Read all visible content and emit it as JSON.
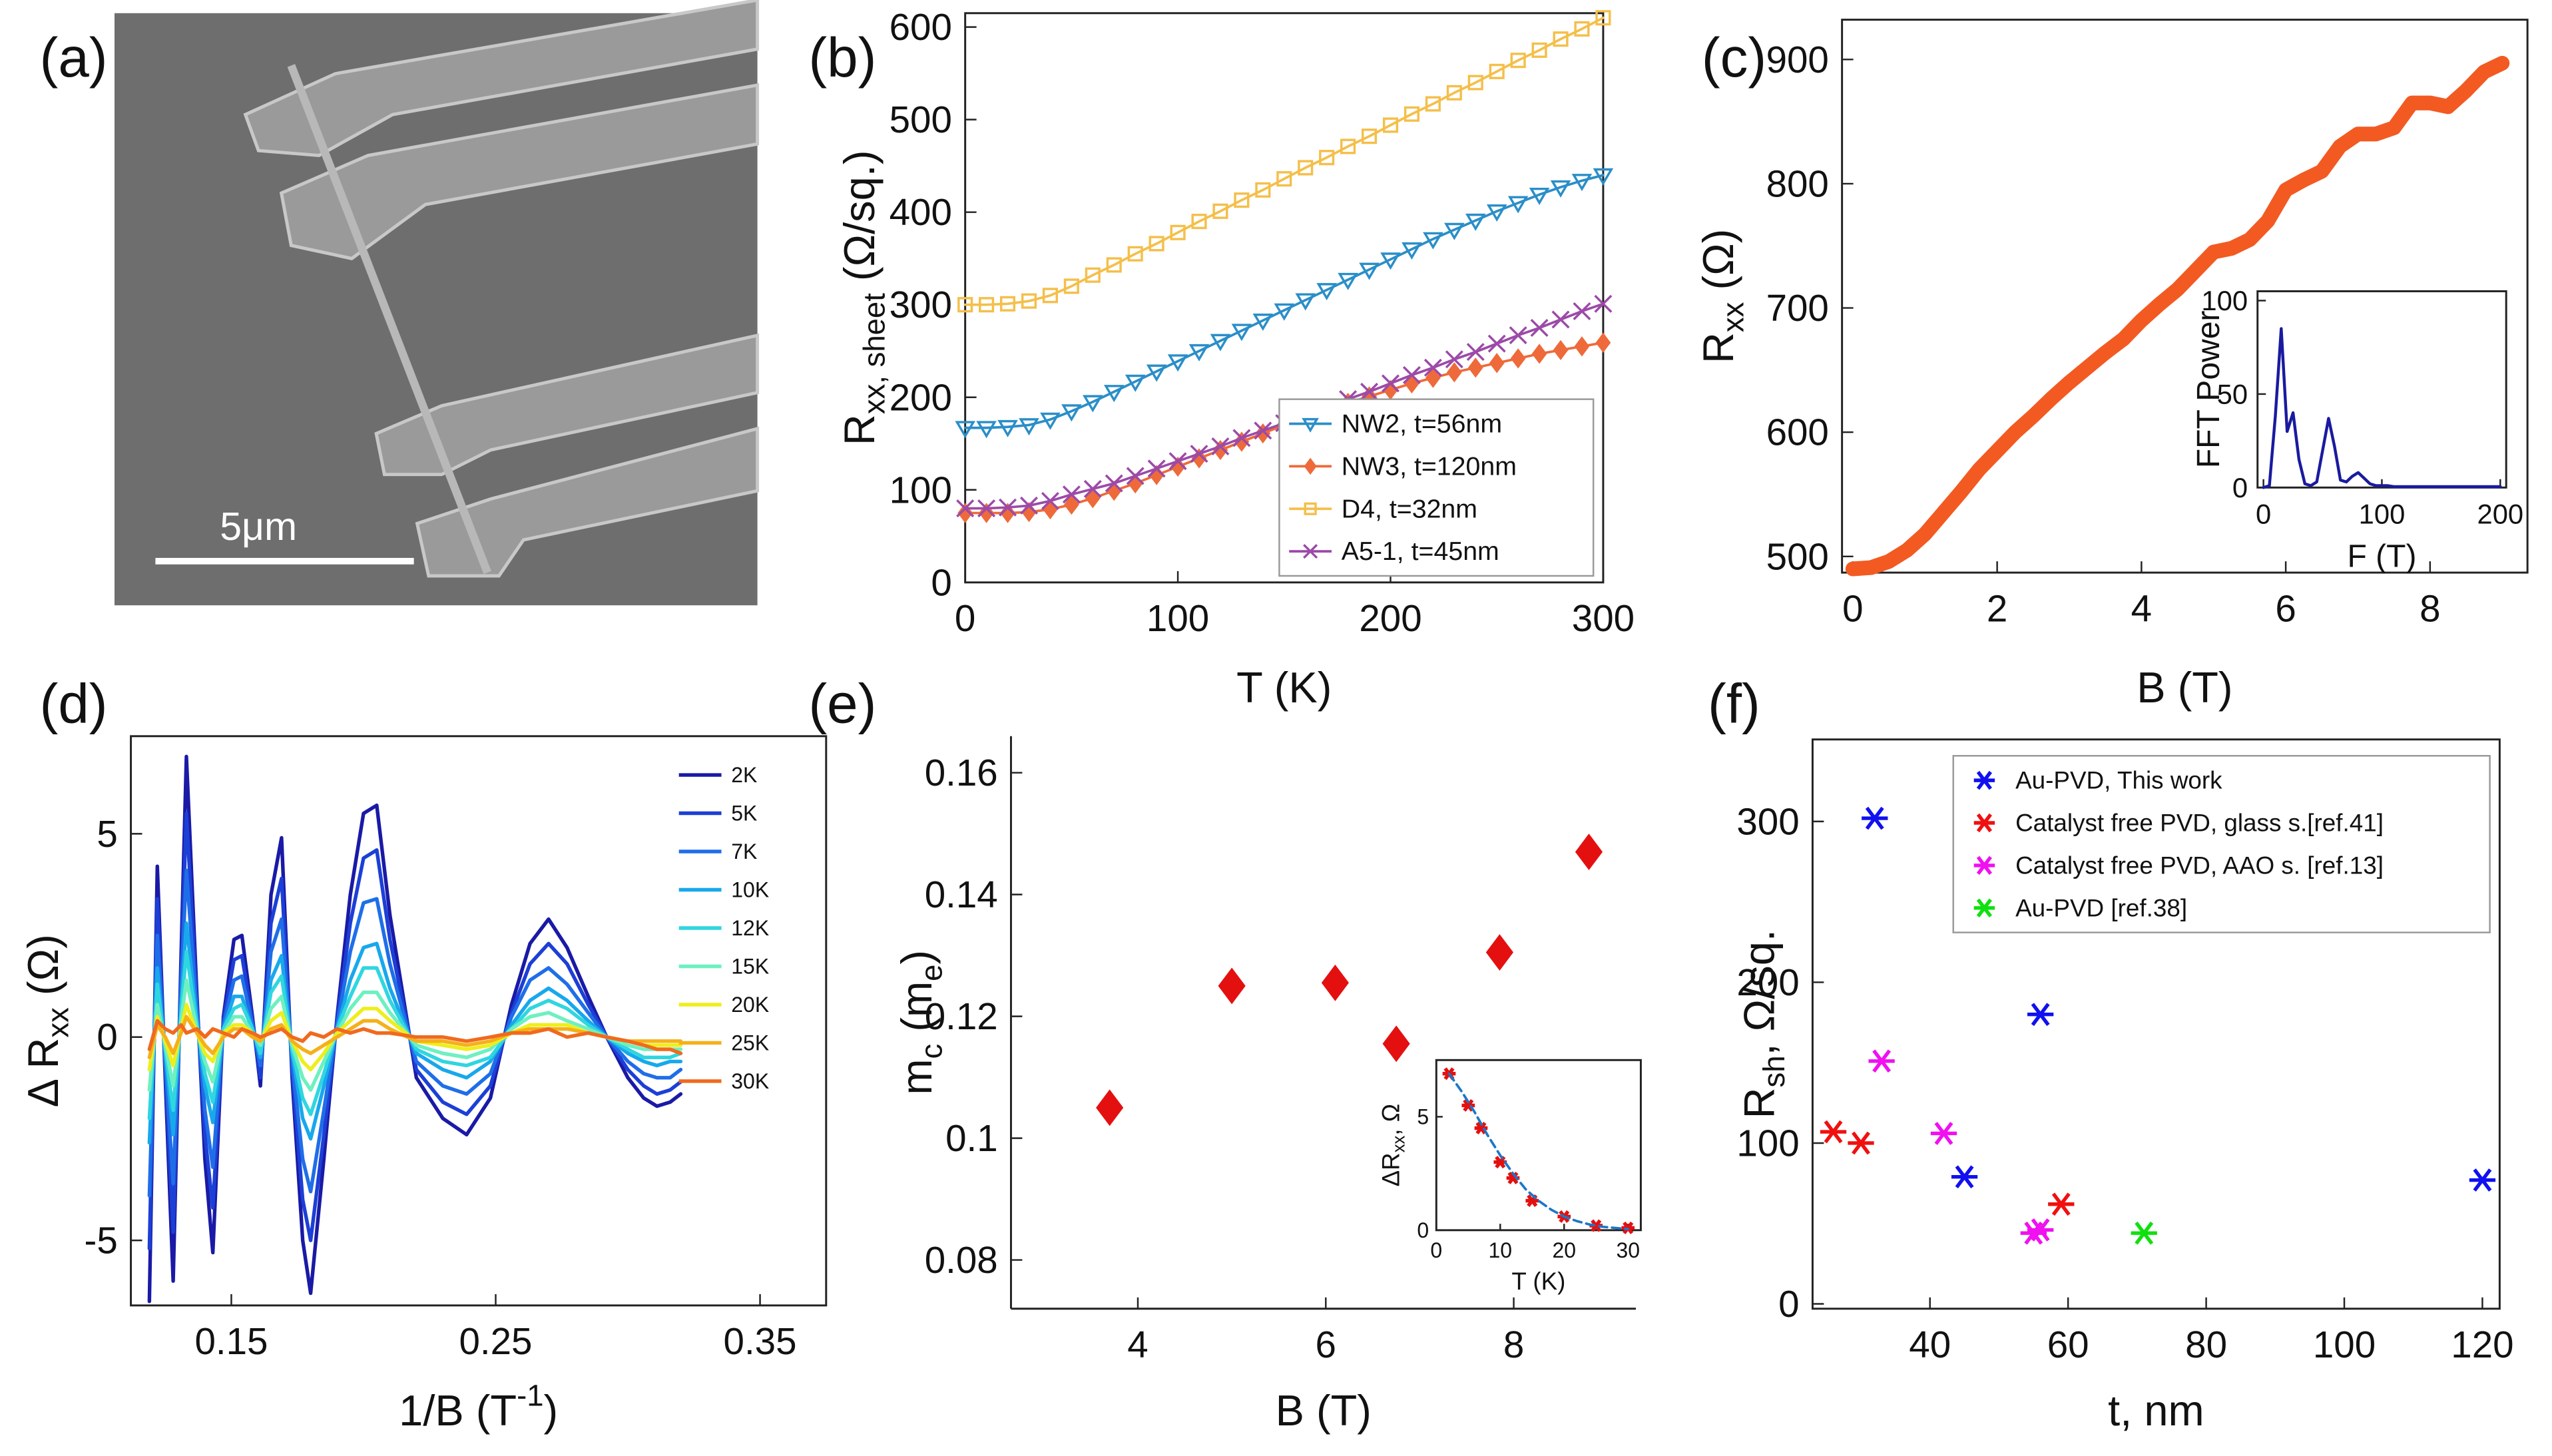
{
  "chart_data": [
    {
      "type": "image",
      "label": "(a)",
      "scale_bar": "5μm"
    },
    {
      "type": "line",
      "label": "(b)",
      "box": true,
      "xlabel": [
        "T (K)"
      ],
      "ylabel": [
        "R",
        "xx, sheet",
        " (Ω/sq.)"
      ],
      "xlim": [
        0,
        300
      ],
      "ylim": [
        0,
        615
      ],
      "xticks": [
        0,
        100,
        200,
        300
      ],
      "yticks": [
        0,
        100,
        200,
        300,
        400,
        500,
        600
      ],
      "legend": {
        "corner": "lower right",
        "frame": true
      },
      "x": [
        0,
        10,
        20,
        30,
        40,
        50,
        60,
        70,
        80,
        90,
        100,
        110,
        120,
        130,
        140,
        150,
        160,
        170,
        180,
        190,
        200,
        210,
        220,
        230,
        240,
        250,
        260,
        270,
        280,
        290,
        300
      ],
      "series": [
        {
          "name": "NW2, t=56nm",
          "color": "#2a8ec8",
          "marker": "triangle-down",
          "values": [
            167,
            167,
            168,
            170,
            176,
            185,
            195,
            206,
            217,
            228,
            239,
            250,
            261,
            272,
            283,
            294,
            305,
            316,
            327,
            338,
            349,
            360,
            371,
            381,
            391,
            401,
            410,
            419,
            427,
            434,
            440
          ]
        },
        {
          "name": "NW3, t=120nm",
          "color": "#ee6a3a",
          "marker": "diamond",
          "values": [
            75,
            75,
            75,
            76,
            79,
            84,
            91,
            99,
            107,
            116,
            125,
            134,
            143,
            152,
            161,
            170,
            178,
            186,
            194,
            201,
            208,
            215,
            221,
            227,
            232,
            237,
            242,
            247,
            251,
            255,
            259
          ]
        },
        {
          "name": "D4, t=32nm",
          "color": "#f4bf4a",
          "marker": "square",
          "values": [
            300,
            300,
            301,
            304,
            310,
            320,
            332,
            343,
            355,
            366,
            378,
            390,
            401,
            413,
            424,
            436,
            448,
            459,
            471,
            482,
            494,
            506,
            517,
            529,
            540,
            552,
            564,
            575,
            587,
            598,
            610
          ]
        },
        {
          "name": "A5-1, t=45nm",
          "color": "#9c4aa8",
          "marker": "x",
          "values": [
            80,
            80,
            81,
            83,
            88,
            95,
            101,
            107,
            115,
            123,
            131,
            139,
            147,
            156,
            164,
            172,
            181,
            189,
            198,
            206,
            215,
            224,
            232,
            241,
            249,
            258,
            267,
            275,
            284,
            293,
            301
          ]
        }
      ]
    },
    {
      "type": "line",
      "label": "(c)",
      "box": true,
      "xlabel": [
        "B (T)"
      ],
      "ylabel": [
        "R",
        "xx",
        " (Ω)"
      ],
      "xlim": [
        -0.15,
        9.35
      ],
      "ylim": [
        487,
        932
      ],
      "xticks": [
        0,
        2,
        4,
        6,
        8
      ],
      "yticks": [
        500,
        600,
        700,
        800,
        900
      ],
      "x": [
        0,
        0.25,
        0.5,
        0.75,
        1,
        1.25,
        1.5,
        1.75,
        2,
        2.25,
        2.5,
        2.75,
        3,
        3.25,
        3.5,
        3.75,
        4,
        4.25,
        4.5,
        4.75,
        5,
        5.25,
        5.5,
        5.75,
        6,
        6.25,
        6.5,
        6.75,
        7,
        7.25,
        7.5,
        7.75,
        8,
        8.25,
        8.5,
        8.75,
        9
      ],
      "color": "#f25a22",
      "values": [
        490,
        491,
        496,
        505,
        518,
        535,
        552,
        570,
        585,
        600,
        613,
        627,
        640,
        652,
        664,
        675,
        690,
        703,
        715,
        730,
        745,
        748,
        755,
        770,
        795,
        803,
        810,
        830,
        840,
        840,
        845,
        865,
        865,
        862,
        875,
        890,
        897
      ],
      "inset": {
        "type": "line",
        "box": true,
        "xlabel": [
          "F (T)"
        ],
        "ylabel": [
          "FFT Power"
        ],
        "xlim": [
          -5,
          205
        ],
        "ylim": [
          0,
          105
        ],
        "xticks": [
          0,
          100,
          200
        ],
        "yticks": [
          0,
          50,
          100
        ],
        "color": "#1a1aa0",
        "x": [
          0,
          5,
          10,
          15,
          20,
          25,
          30,
          35,
          40,
          45,
          50,
          55,
          60,
          65,
          70,
          75,
          80,
          85,
          90,
          95,
          100,
          105,
          110,
          115,
          120,
          125,
          130,
          135,
          140,
          145,
          150,
          155,
          160,
          165,
          170,
          175,
          180,
          185,
          190,
          195,
          200
        ],
        "values": [
          0,
          1,
          38,
          85,
          30,
          40,
          15,
          2,
          1,
          3,
          20,
          37,
          22,
          4,
          3,
          6,
          8,
          5,
          2,
          1,
          1,
          1,
          0.5,
          0.5,
          0.5,
          0.5,
          0.5,
          0.5,
          0.5,
          0.5,
          0.5,
          0.5,
          0.5,
          0.5,
          0.5,
          0.5,
          0.5,
          0.5,
          0.5,
          0.5,
          0.5
        ]
      }
    },
    {
      "type": "line",
      "label": "(d)",
      "box": true,
      "xlabel": [
        "1/B (T",
        "-1",
        ")"
      ],
      "xlabel_script": "super",
      "ylabel": [
        "Δ R",
        "xx",
        " (Ω)"
      ],
      "xlim": [
        0.112,
        0.375
      ],
      "ylim": [
        -6.6,
        7.4
      ],
      "xticks": [
        0.15,
        0.25,
        0.35
      ],
      "yticks": [
        -5,
        0,
        5
      ],
      "legend": {
        "corner": "upper right",
        "frame": false
      },
      "x": [
        0.119,
        0.122,
        0.125,
        0.128,
        0.131,
        0.133,
        0.137,
        0.14,
        0.143,
        0.147,
        0.151,
        0.154,
        0.158,
        0.161,
        0.165,
        0.169,
        0.173,
        0.177,
        0.18,
        0.185,
        0.19,
        0.195,
        0.2,
        0.205,
        0.21,
        0.22,
        0.23,
        0.239,
        0.248,
        0.256,
        0.263,
        0.27,
        0.277,
        0.285,
        0.292,
        0.3,
        0.306,
        0.311,
        0.316,
        0.32
      ],
      "series": [
        {
          "name": "2K",
          "color": "#1a1aa6",
          "values": [
            -6.5,
            4.2,
            -1,
            -6,
            2,
            6.9,
            1,
            -3,
            -5.3,
            0.5,
            2.4,
            2.5,
            0.5,
            -1.2,
            3.5,
            4.9,
            -1,
            -5,
            -6.3,
            -3,
            0.5,
            3.5,
            5.5,
            5.7,
            3,
            -1,
            -2,
            -2.4,
            -1.5,
            0.8,
            2.3,
            2.9,
            2.2,
            1,
            0,
            -1,
            -1.5,
            -1.7,
            -1.6,
            -1.4
          ]
        },
        {
          "name": "5K",
          "color": "#1c3fd6",
          "values": [
            -5.2,
            3.4,
            -0.8,
            -4.8,
            1.6,
            5.5,
            0.8,
            -2.4,
            -4.2,
            0.4,
            1.9,
            2,
            0.4,
            -1,
            2.8,
            3.9,
            -0.8,
            -4,
            -5,
            -2.4,
            0.4,
            2.8,
            4.4,
            4.6,
            2.4,
            -0.8,
            -1.6,
            -1.9,
            -1.2,
            0.6,
            1.8,
            2.3,
            1.8,
            0.8,
            0,
            -0.8,
            -1.2,
            -1.4,
            -1.3,
            -1.1
          ]
        },
        {
          "name": "7K",
          "color": "#1f6ee8",
          "values": [
            -3.9,
            2.5,
            -0.6,
            -3.6,
            1.2,
            4.1,
            0.6,
            -1.8,
            -3.2,
            0.3,
            1.4,
            1.5,
            0.3,
            -0.7,
            2.1,
            2.9,
            -0.6,
            -3,
            -3.8,
            -1.8,
            0.3,
            2.1,
            3.3,
            3.4,
            1.8,
            -0.6,
            -1.2,
            -1.4,
            -0.9,
            0.5,
            1.4,
            1.7,
            1.3,
            0.6,
            0,
            -0.6,
            -0.9,
            -1,
            -1,
            -0.8
          ]
        },
        {
          "name": "10K",
          "color": "#18a8ec",
          "values": [
            -2.6,
            1.7,
            -0.4,
            -2.4,
            0.8,
            2.8,
            0.4,
            -1.2,
            -2.1,
            0.2,
            1,
            1,
            0.2,
            -0.5,
            1.4,
            2,
            -0.4,
            -2,
            -2.5,
            -1.2,
            0.2,
            1.4,
            2.2,
            2.3,
            1.2,
            -0.4,
            -0.8,
            -1,
            -0.6,
            0.3,
            0.9,
            1.2,
            0.9,
            0.4,
            0,
            -0.4,
            -0.6,
            -0.7,
            -0.6,
            -0.6
          ]
        },
        {
          "name": "12K",
          "color": "#2fd6e0",
          "values": [
            -2,
            1.3,
            -0.3,
            -1.8,
            0.6,
            2.1,
            0.3,
            -0.9,
            -1.6,
            0.2,
            0.7,
            0.8,
            0.2,
            -0.4,
            1.1,
            1.5,
            -0.3,
            -1.5,
            -1.9,
            -0.9,
            0.2,
            1,
            1.7,
            1.7,
            0.9,
            -0.3,
            -0.6,
            -0.7,
            -0.5,
            0.2,
            0.7,
            0.9,
            0.7,
            0.3,
            0,
            -0.3,
            -0.5,
            -0.5,
            -0.5,
            -0.4
          ]
        },
        {
          "name": "15K",
          "color": "#6ef0c0",
          "values": [
            -1.3,
            0.8,
            -0.2,
            -1.2,
            0.4,
            1.4,
            0.2,
            -0.6,
            -1.1,
            0.1,
            0.5,
            0.5,
            0.1,
            -0.2,
            0.7,
            1,
            -0.2,
            -1,
            -1.3,
            -0.6,
            0.1,
            0.7,
            1.1,
            1.1,
            0.6,
            -0.2,
            -0.4,
            -0.5,
            -0.3,
            0.2,
            0.5,
            0.6,
            0.4,
            0.2,
            0,
            -0.2,
            -0.3,
            -0.3,
            -0.3,
            -0.3
          ]
        },
        {
          "name": "20K",
          "color": "#eeee1c",
          "values": [
            -0.8,
            0.5,
            -0.1,
            -0.7,
            0.2,
            0.8,
            0.1,
            -0.4,
            -0.6,
            0.1,
            0.3,
            0.3,
            0.1,
            -0.1,
            0.4,
            0.6,
            -0.1,
            -0.6,
            -0.8,
            -0.4,
            0.1,
            0.4,
            0.7,
            0.7,
            0.4,
            -0.1,
            -0.2,
            -0.3,
            -0.2,
            0.1,
            0.3,
            0.3,
            0.3,
            0.1,
            0,
            -0.1,
            -0.2,
            -0.2,
            -0.2,
            -0.2
          ]
        },
        {
          "name": "25K",
          "color": "#f5b01a",
          "values": [
            -0.5,
            0.3,
            0,
            -0.4,
            0.1,
            0.5,
            0.1,
            -0.2,
            -0.4,
            0,
            0.2,
            0.2,
            0,
            -0.1,
            0.2,
            0.3,
            -0.1,
            -0.3,
            -0.4,
            -0.2,
            0,
            0.2,
            0.4,
            0.4,
            0.2,
            -0.1,
            -0.1,
            -0.2,
            -0.1,
            0.1,
            0.2,
            0.2,
            0.2,
            0.1,
            0,
            -0.1,
            -0.1,
            -0.1,
            -0.1,
            -0.1
          ]
        },
        {
          "name": "30K",
          "color": "#f06a1e",
          "values": [
            -0.3,
            0.4,
            0.2,
            0.1,
            0.3,
            0.1,
            0.2,
            0,
            0.2,
            0.1,
            0,
            0.2,
            0.1,
            0,
            0.1,
            0.2,
            0,
            -0.1,
            0.1,
            0,
            0.2,
            0.1,
            0.2,
            0.1,
            0.1,
            0,
            0,
            -0.1,
            0,
            0.1,
            0.1,
            0.2,
            0,
            0.1,
            0,
            -0.1,
            -0.2,
            -0.3,
            -0.3,
            -0.4
          ]
        }
      ]
    },
    {
      "type": "scatter",
      "label": "(e)",
      "box": false,
      "xlabel": [
        "B (T)"
      ],
      "ylabel": [
        "m",
        "c",
        " (m",
        "e",
        ")"
      ],
      "xlim": [
        2.65,
        9.3
      ],
      "ylim": [
        0.072,
        0.166
      ],
      "xticks": [
        4,
        6,
        8
      ],
      "yticks": [
        0.08,
        0.1,
        0.12,
        0.14,
        0.16
      ],
      "x": [
        3.7,
        5,
        6.1,
        6.75,
        7.85,
        8.8
      ],
      "values": [
        0.105,
        0.125,
        0.1255,
        0.1155,
        0.1305,
        0.147
      ],
      "color": "#e41010",
      "marker": "diamond",
      "inset": {
        "type": "line",
        "box": true,
        "xlabel": [
          "T (K)"
        ],
        "ylabel": [
          "ΔR",
          "xx",
          ", Ω"
        ],
        "xlim": [
          0,
          32
        ],
        "ylim": [
          0,
          7.5
        ],
        "xticks": [
          0,
          10,
          20,
          30
        ],
        "yticks": [
          0,
          5
        ],
        "series": [
          {
            "color": "#e41010",
            "marker": "asterisk",
            "line": false,
            "x": [
              2,
              5,
              7,
              10,
              12,
              15,
              20,
              25,
              30
            ],
            "values": [
              6.9,
              5.5,
              4.5,
              3,
              2.3,
              1.3,
              0.6,
              0.2,
              0.1
            ]
          },
          {
            "color": "#1a78c8",
            "dash": true,
            "x": [
              2,
              4,
              6,
              8,
              10,
              12,
              14,
              16,
              18,
              20,
              22,
              24,
              26,
              28,
              30
            ],
            "values": [
              6.9,
              6.1,
              5.2,
              4.2,
              3.3,
              2.5,
              1.8,
              1.3,
              0.9,
              0.6,
              0.4,
              0.25,
              0.15,
              0.1,
              0.05
            ]
          }
        ]
      }
    },
    {
      "type": "scatter",
      "label": "(f)",
      "box": true,
      "xlabel": [
        "t, nm"
      ],
      "ylabel": [
        "R",
        "sh",
        ", Ω/sq."
      ],
      "xlim": [
        23,
        122.5
      ],
      "ylim": [
        -3,
        351
      ],
      "xticks": [
        40,
        60,
        80,
        100,
        120
      ],
      "yticks": [
        0,
        100,
        200,
        300
      ],
      "legend": {
        "corner": "upper right",
        "frame": true
      },
      "series": [
        {
          "name": "Au-PVD, This work",
          "color": "#1010f0",
          "marker": "asterisk",
          "x": [
            32,
            56,
            45,
            120
          ],
          "values": [
            302,
            180,
            79,
            77
          ]
        },
        {
          "name": "Catalyst free PVD, glass s.[ref.41]",
          "color": "#f01010",
          "marker": "asterisk",
          "x": [
            26,
            30,
            59
          ],
          "values": [
            107,
            100,
            62
          ]
        },
        {
          "name": "Catalyst free PVD, AAO s. [ref.13]",
          "color": "#f010f0",
          "marker": "asterisk",
          "x": [
            33,
            42,
            55,
            56
          ],
          "values": [
            151,
            106,
            44,
            46
          ]
        },
        {
          "name": "Au-PVD  [ref.38]",
          "color": "#10e010",
          "marker": "asterisk",
          "x": [
            71
          ],
          "values": [
            44
          ]
        }
      ]
    }
  ]
}
